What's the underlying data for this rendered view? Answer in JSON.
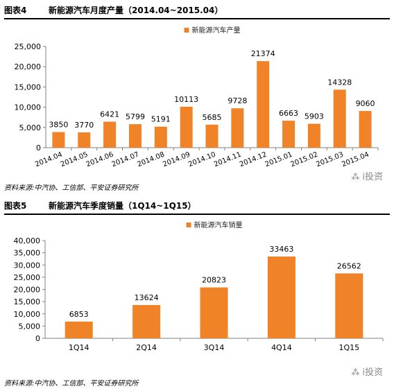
{
  "chart_data": [
    {
      "type": "bar",
      "figure_label": "图表4",
      "title": "新能源汽车月度产量（2014.04~2015.04）",
      "legend": "新能源汽车产量",
      "legend_position": "top-center",
      "categories": [
        "2014.04",
        "2014.05",
        "2014.06",
        "2014.07",
        "2014.08",
        "2014.09",
        "2014.10",
        "2014.11",
        "2014.12",
        "2015.01",
        "2015.02",
        "2015.03",
        "2015.04"
      ],
      "values": [
        3850,
        3770,
        6421,
        5799,
        5191,
        10113,
        5685,
        9728,
        21374,
        6663,
        5903,
        14328,
        9060
      ],
      "yticks": [
        "0",
        "5,000",
        "10,000",
        "15,000",
        "20,000",
        "25,000"
      ],
      "ylim": [
        0,
        25000
      ],
      "grid": false,
      "color": "#f08228",
      "source": "资料来源:中汽协、工信部、平安证券研究所"
    },
    {
      "type": "bar",
      "figure_label": "图表5",
      "title": "新能源汽车季度销量（1Q14~1Q15）",
      "legend": "新能源汽车销量",
      "legend_position": "top-center",
      "categories": [
        "1Q14",
        "2Q14",
        "3Q14",
        "4Q14",
        "1Q15"
      ],
      "values": [
        6853,
        13624,
        20823,
        33463,
        26562
      ],
      "yticks": [
        "0",
        "5,000",
        "10,000",
        "15,000",
        "20,000",
        "25,000",
        "30,000",
        "35,000",
        "40,000"
      ],
      "ylim": [
        0,
        40000
      ],
      "grid": false,
      "color": "#f08228",
      "source": "资料来源:中汽协、工信部、平安证券研究所"
    }
  ],
  "watermark": {
    "icon": "wechat-icon",
    "text": "i投资"
  }
}
